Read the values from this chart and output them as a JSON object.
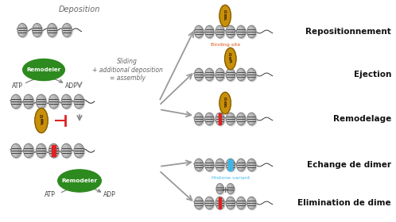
{
  "bg_color": "#ffffff",
  "labels_right": [
    "Repositionnement",
    "Ejection",
    "Remodelage",
    "Echange de dimer",
    "Elimination de dime"
  ],
  "label_fontsize": 7.5,
  "label_fontweight": "bold",
  "remodeler_color": "#2d8a1e",
  "remodeler_text_color": "#ffffff",
  "dbp_color": "#c8900a",
  "dbp_text_color": "#3a2000",
  "nucleosome_color": "#b0b0b0",
  "nucleosome_stripe_color": "#333333",
  "nucleosome_light_color": "#d8d8d8",
  "red_mark_color": "#dd2222",
  "blue_variant_color": "#3ab8e8",
  "arrow_color": "#999999",
  "binding_site_color": "#e05010",
  "histone_variant_color": "#3ab8e8",
  "deposition_label": "Deposition",
  "sliding_label": "Sliding\n+ additional deposition\n= assembly",
  "binding_site_label": "Binding site",
  "histone_variant_label": "Histone variant"
}
